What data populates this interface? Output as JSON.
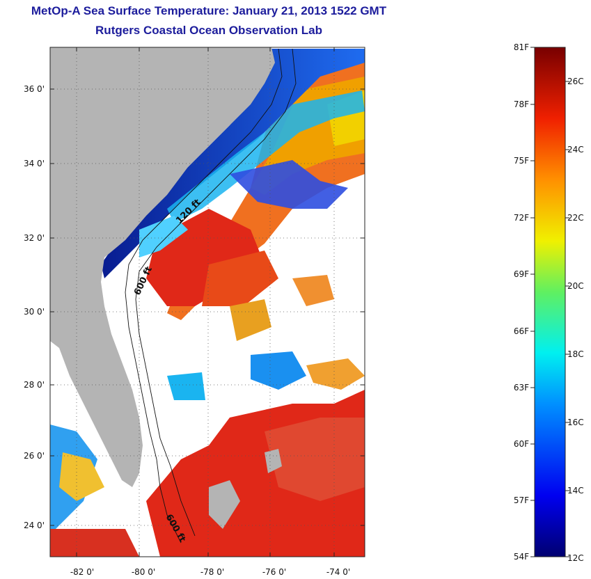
{
  "title": "MetOp-A Sea Surface Temperature:  January 21, 2013 1522 GMT",
  "subtitle": "Rutgers Coastal Ocean Observation Lab",
  "map": {
    "lon_ticks": [
      "-82 0'",
      "-80 0'",
      "-78 0'",
      "-76 0'",
      "-74 0'"
    ],
    "lat_ticks": [
      "36 0'",
      "34 0'",
      "32 0'",
      "30 0'",
      "28 0'",
      "26 0'",
      "24 0'"
    ],
    "isobath_labels": [
      "120 ft",
      "600 ft",
      "600 ft"
    ],
    "colors": {
      "land": "#b4b4b4",
      "cloud": "#ffffff",
      "cold": "#0a2aa8",
      "cool": "#1aa0ff",
      "mid": "#f4d800",
      "warm": "#f08020",
      "hot": "#e02010"
    }
  },
  "colorbar": {
    "fahrenheit_labels": [
      "81F",
      "78F",
      "75F",
      "72F",
      "69F",
      "66F",
      "63F",
      "60F",
      "57F",
      "54F"
    ],
    "celsius_labels": [
      "26C",
      "24C",
      "22C",
      "20C",
      "18C",
      "16C",
      "14C",
      "12C"
    ]
  }
}
